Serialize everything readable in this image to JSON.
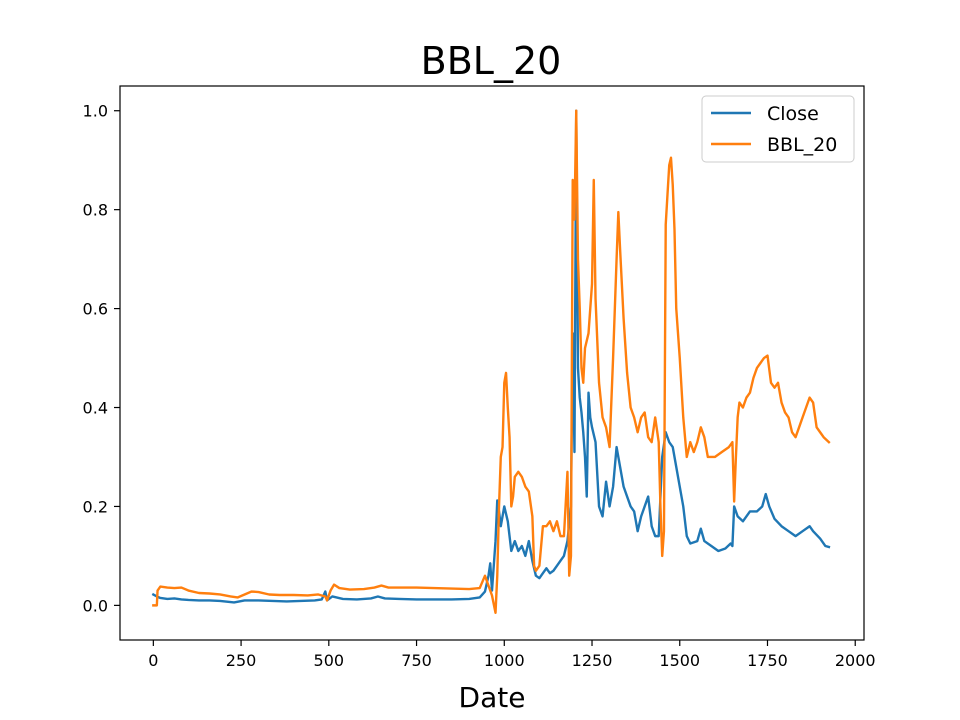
{
  "chart_data": {
    "type": "line",
    "title": "BBL_20",
    "xlabel": "Date",
    "ylabel": "",
    "xlim": [
      -95,
      2025
    ],
    "ylim": [
      -0.07,
      1.05
    ],
    "grid": false,
    "legend_position": "top-right",
    "x_ticks": [
      0,
      250,
      500,
      750,
      1000,
      1250,
      1500,
      1750,
      2000
    ],
    "y_ticks": [
      0.0,
      0.2,
      0.4,
      0.6,
      0.8,
      1.0
    ],
    "x_tick_labels": [
      "0",
      "250",
      "500",
      "750",
      "1000",
      "1250",
      "1500",
      "1750",
      "2000"
    ],
    "y_tick_labels": [
      "0.0",
      "0.2",
      "0.4",
      "0.6",
      "0.8",
      "1.0"
    ],
    "series": [
      {
        "name": "Close",
        "color": "#1f77b4",
        "points": [
          [
            0,
            0.022
          ],
          [
            10,
            0.018
          ],
          [
            20,
            0.015
          ],
          [
            40,
            0.013
          ],
          [
            60,
            0.014
          ],
          [
            80,
            0.012
          ],
          [
            100,
            0.011
          ],
          [
            130,
            0.01
          ],
          [
            160,
            0.01
          ],
          [
            190,
            0.009
          ],
          [
            230,
            0.006
          ],
          [
            260,
            0.01
          ],
          [
            300,
            0.01
          ],
          [
            340,
            0.009
          ],
          [
            380,
            0.008
          ],
          [
            420,
            0.009
          ],
          [
            460,
            0.01
          ],
          [
            480,
            0.012
          ],
          [
            490,
            0.028
          ],
          [
            495,
            0.01
          ],
          [
            510,
            0.018
          ],
          [
            540,
            0.013
          ],
          [
            580,
            0.012
          ],
          [
            620,
            0.014
          ],
          [
            640,
            0.018
          ],
          [
            660,
            0.014
          ],
          [
            700,
            0.013
          ],
          [
            750,
            0.012
          ],
          [
            800,
            0.012
          ],
          [
            850,
            0.012
          ],
          [
            900,
            0.013
          ],
          [
            930,
            0.016
          ],
          [
            945,
            0.028
          ],
          [
            955,
            0.06
          ],
          [
            960,
            0.085
          ],
          [
            965,
            0.03
          ],
          [
            975,
            0.13
          ],
          [
            980,
            0.212
          ],
          [
            985,
            0.19
          ],
          [
            990,
            0.16
          ],
          [
            1000,
            0.2
          ],
          [
            1010,
            0.17
          ],
          [
            1020,
            0.11
          ],
          [
            1030,
            0.13
          ],
          [
            1040,
            0.11
          ],
          [
            1050,
            0.12
          ],
          [
            1060,
            0.1
          ],
          [
            1070,
            0.13
          ],
          [
            1080,
            0.09
          ],
          [
            1090,
            0.06
          ],
          [
            1100,
            0.055
          ],
          [
            1110,
            0.065
          ],
          [
            1120,
            0.075
          ],
          [
            1130,
            0.065
          ],
          [
            1140,
            0.07
          ],
          [
            1150,
            0.08
          ],
          [
            1160,
            0.09
          ],
          [
            1170,
            0.1
          ],
          [
            1180,
            0.13
          ],
          [
            1190,
            0.2
          ],
          [
            1195,
            0.55
          ],
          [
            1200,
            0.31
          ],
          [
            1205,
            1.0
          ],
          [
            1210,
            0.48
          ],
          [
            1215,
            0.42
          ],
          [
            1220,
            0.39
          ],
          [
            1225,
            0.35
          ],
          [
            1230,
            0.3
          ],
          [
            1235,
            0.22
          ],
          [
            1240,
            0.43
          ],
          [
            1245,
            0.38
          ],
          [
            1250,
            0.36
          ],
          [
            1260,
            0.33
          ],
          [
            1270,
            0.2
          ],
          [
            1280,
            0.18
          ],
          [
            1290,
            0.25
          ],
          [
            1300,
            0.2
          ],
          [
            1310,
            0.24
          ],
          [
            1320,
            0.32
          ],
          [
            1330,
            0.28
          ],
          [
            1340,
            0.24
          ],
          [
            1350,
            0.22
          ],
          [
            1360,
            0.2
          ],
          [
            1370,
            0.19
          ],
          [
            1380,
            0.15
          ],
          [
            1390,
            0.18
          ],
          [
            1400,
            0.2
          ],
          [
            1410,
            0.22
          ],
          [
            1420,
            0.16
          ],
          [
            1430,
            0.14
          ],
          [
            1440,
            0.14
          ],
          [
            1450,
            0.3
          ],
          [
            1460,
            0.35
          ],
          [
            1470,
            0.33
          ],
          [
            1480,
            0.32
          ],
          [
            1490,
            0.28
          ],
          [
            1500,
            0.24
          ],
          [
            1510,
            0.2
          ],
          [
            1520,
            0.14
          ],
          [
            1530,
            0.125
          ],
          [
            1550,
            0.13
          ],
          [
            1560,
            0.155
          ],
          [
            1570,
            0.13
          ],
          [
            1590,
            0.12
          ],
          [
            1610,
            0.11
          ],
          [
            1630,
            0.115
          ],
          [
            1645,
            0.125
          ],
          [
            1650,
            0.12
          ],
          [
            1655,
            0.2
          ],
          [
            1665,
            0.18
          ],
          [
            1680,
            0.17
          ],
          [
            1700,
            0.19
          ],
          [
            1720,
            0.19
          ],
          [
            1735,
            0.2
          ],
          [
            1745,
            0.225
          ],
          [
            1755,
            0.2
          ],
          [
            1770,
            0.175
          ],
          [
            1790,
            0.16
          ],
          [
            1810,
            0.15
          ],
          [
            1830,
            0.14
          ],
          [
            1850,
            0.15
          ],
          [
            1870,
            0.16
          ],
          [
            1880,
            0.15
          ],
          [
            1900,
            0.135
          ],
          [
            1915,
            0.12
          ],
          [
            1925,
            0.118
          ]
        ]
      },
      {
        "name": "BBL_20",
        "color": "#ff7f0e",
        "points": [
          [
            0,
            0.0
          ],
          [
            5,
            0.0
          ],
          [
            10,
            0.0
          ],
          [
            12,
            0.03
          ],
          [
            20,
            0.038
          ],
          [
            40,
            0.036
          ],
          [
            60,
            0.035
          ],
          [
            80,
            0.036
          ],
          [
            100,
            0.03
          ],
          [
            130,
            0.025
          ],
          [
            160,
            0.024
          ],
          [
            190,
            0.022
          ],
          [
            220,
            0.018
          ],
          [
            240,
            0.016
          ],
          [
            260,
            0.022
          ],
          [
            280,
            0.028
          ],
          [
            300,
            0.027
          ],
          [
            330,
            0.022
          ],
          [
            360,
            0.021
          ],
          [
            400,
            0.021
          ],
          [
            440,
            0.02
          ],
          [
            470,
            0.022
          ],
          [
            490,
            0.018
          ],
          [
            495,
            0.01
          ],
          [
            505,
            0.03
          ],
          [
            515,
            0.042
          ],
          [
            530,
            0.035
          ],
          [
            560,
            0.032
          ],
          [
            600,
            0.033
          ],
          [
            630,
            0.036
          ],
          [
            650,
            0.04
          ],
          [
            670,
            0.036
          ],
          [
            700,
            0.036
          ],
          [
            750,
            0.036
          ],
          [
            800,
            0.035
          ],
          [
            850,
            0.034
          ],
          [
            900,
            0.033
          ],
          [
            930,
            0.035
          ],
          [
            945,
            0.06
          ],
          [
            955,
            0.04
          ],
          [
            965,
            0.02
          ],
          [
            975,
            -0.015
          ],
          [
            980,
            0.06
          ],
          [
            985,
            0.2
          ],
          [
            990,
            0.3
          ],
          [
            995,
            0.32
          ],
          [
            1000,
            0.45
          ],
          [
            1005,
            0.47
          ],
          [
            1010,
            0.4
          ],
          [
            1015,
            0.34
          ],
          [
            1020,
            0.2
          ],
          [
            1025,
            0.22
          ],
          [
            1030,
            0.26
          ],
          [
            1040,
            0.27
          ],
          [
            1050,
            0.26
          ],
          [
            1060,
            0.24
          ],
          [
            1070,
            0.23
          ],
          [
            1080,
            0.18
          ],
          [
            1085,
            0.08
          ],
          [
            1090,
            0.07
          ],
          [
            1100,
            0.08
          ],
          [
            1110,
            0.16
          ],
          [
            1120,
            0.16
          ],
          [
            1130,
            0.17
          ],
          [
            1140,
            0.15
          ],
          [
            1150,
            0.17
          ],
          [
            1160,
            0.14
          ],
          [
            1170,
            0.14
          ],
          [
            1180,
            0.27
          ],
          [
            1185,
            0.06
          ],
          [
            1190,
            0.1
          ],
          [
            1195,
            0.86
          ],
          [
            1200,
            0.78
          ],
          [
            1205,
            1.0
          ],
          [
            1210,
            0.7
          ],
          [
            1215,
            0.6
          ],
          [
            1220,
            0.48
          ],
          [
            1225,
            0.45
          ],
          [
            1230,
            0.52
          ],
          [
            1240,
            0.55
          ],
          [
            1250,
            0.65
          ],
          [
            1255,
            0.86
          ],
          [
            1260,
            0.62
          ],
          [
            1270,
            0.45
          ],
          [
            1280,
            0.38
          ],
          [
            1290,
            0.36
          ],
          [
            1300,
            0.32
          ],
          [
            1310,
            0.5
          ],
          [
            1320,
            0.7
          ],
          [
            1325,
            0.795
          ],
          [
            1330,
            0.72
          ],
          [
            1340,
            0.58
          ],
          [
            1350,
            0.47
          ],
          [
            1360,
            0.4
          ],
          [
            1370,
            0.38
          ],
          [
            1380,
            0.35
          ],
          [
            1390,
            0.38
          ],
          [
            1400,
            0.39
          ],
          [
            1410,
            0.34
          ],
          [
            1420,
            0.33
          ],
          [
            1430,
            0.38
          ],
          [
            1440,
            0.33
          ],
          [
            1445,
            0.2
          ],
          [
            1450,
            0.1
          ],
          [
            1455,
            0.15
          ],
          [
            1460,
            0.77
          ],
          [
            1465,
            0.83
          ],
          [
            1470,
            0.89
          ],
          [
            1475,
            0.905
          ],
          [
            1480,
            0.85
          ],
          [
            1485,
            0.76
          ],
          [
            1490,
            0.6
          ],
          [
            1495,
            0.55
          ],
          [
            1500,
            0.5
          ],
          [
            1510,
            0.38
          ],
          [
            1520,
            0.3
          ],
          [
            1530,
            0.33
          ],
          [
            1540,
            0.31
          ],
          [
            1550,
            0.33
          ],
          [
            1560,
            0.36
          ],
          [
            1570,
            0.34
          ],
          [
            1580,
            0.3
          ],
          [
            1600,
            0.3
          ],
          [
            1620,
            0.31
          ],
          [
            1640,
            0.32
          ],
          [
            1650,
            0.33
          ],
          [
            1655,
            0.21
          ],
          [
            1660,
            0.3
          ],
          [
            1665,
            0.38
          ],
          [
            1670,
            0.41
          ],
          [
            1680,
            0.4
          ],
          [
            1690,
            0.42
          ],
          [
            1700,
            0.43
          ],
          [
            1710,
            0.46
          ],
          [
            1720,
            0.48
          ],
          [
            1730,
            0.49
          ],
          [
            1740,
            0.5
          ],
          [
            1750,
            0.505
          ],
          [
            1760,
            0.45
          ],
          [
            1770,
            0.44
          ],
          [
            1780,
            0.45
          ],
          [
            1790,
            0.41
          ],
          [
            1800,
            0.39
          ],
          [
            1810,
            0.38
          ],
          [
            1820,
            0.35
          ],
          [
            1830,
            0.34
          ],
          [
            1840,
            0.36
          ],
          [
            1850,
            0.38
          ],
          [
            1860,
            0.4
          ],
          [
            1870,
            0.42
          ],
          [
            1880,
            0.41
          ],
          [
            1890,
            0.36
          ],
          [
            1900,
            0.35
          ],
          [
            1910,
            0.34
          ],
          [
            1925,
            0.33
          ]
        ]
      }
    ]
  }
}
